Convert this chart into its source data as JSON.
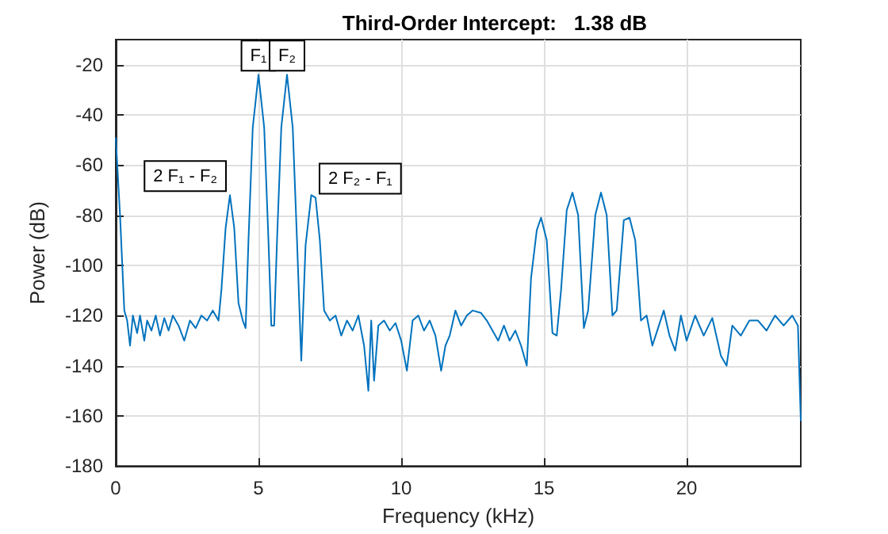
{
  "chart_data": {
    "type": "line",
    "title": "Third-Order Intercept:   1.38 dB",
    "xlabel": "Frequency (kHz)",
    "ylabel": "Power (dB)",
    "xlim": [
      0,
      24
    ],
    "xticks": [
      0,
      5,
      10,
      15,
      20
    ],
    "ylim": [
      -180,
      -10
    ],
    "yticks": [
      -180,
      -160,
      -140,
      -120,
      -100,
      -80,
      -60,
      -40,
      -20
    ],
    "grid": true,
    "marker": "none",
    "line_style": "solid",
    "series": [
      {
        "color": "#0072bd",
        "x": [
          0,
          0.15,
          0.3,
          0.4,
          0.5,
          0.6,
          0.75,
          0.85,
          1.0,
          1.1,
          1.25,
          1.4,
          1.55,
          1.7,
          1.85,
          2.0,
          2.2,
          2.4,
          2.6,
          2.8,
          3.0,
          3.2,
          3.4,
          3.6,
          3.7,
          3.85,
          4.0,
          4.15,
          4.3,
          4.45,
          4.55,
          4.65,
          4.8,
          5.0,
          5.2,
          5.35,
          5.45,
          5.55,
          5.65,
          5.8,
          6.0,
          6.2,
          6.35,
          6.5,
          6.65,
          6.85,
          7.0,
          7.15,
          7.3,
          7.5,
          7.7,
          7.9,
          8.1,
          8.3,
          8.5,
          8.7,
          8.85,
          8.95,
          9.05,
          9.2,
          9.4,
          9.6,
          9.8,
          10.0,
          10.2,
          10.4,
          10.6,
          10.8,
          11.0,
          11.2,
          11.4,
          11.55,
          11.7,
          11.9,
          12.1,
          12.3,
          12.5,
          12.8,
          13.0,
          13.2,
          13.4,
          13.6,
          13.8,
          14.0,
          14.2,
          14.4,
          14.55,
          14.75,
          14.9,
          15.1,
          15.3,
          15.45,
          15.6,
          15.8,
          16.0,
          16.2,
          16.4,
          16.55,
          16.8,
          17.0,
          17.2,
          17.4,
          17.55,
          17.8,
          18.0,
          18.2,
          18.4,
          18.6,
          18.8,
          19.0,
          19.2,
          19.4,
          19.6,
          19.8,
          20.0,
          20.3,
          20.6,
          20.9,
          21.2,
          21.4,
          21.6,
          21.9,
          22.2,
          22.5,
          22.8,
          23.1,
          23.4,
          23.7,
          23.9,
          24.0
        ],
        "values": [
          -49,
          -80,
          -118,
          -122,
          -132,
          -120,
          -127,
          -120,
          -130,
          -122,
          -126,
          -120,
          -128,
          -121,
          -126,
          -120,
          -124,
          -130,
          -122,
          -125,
          -120,
          -122,
          -118,
          -122,
          -110,
          -85,
          -72,
          -85,
          -115,
          -122,
          -125,
          -90,
          -45,
          -24,
          -45,
          -90,
          -124,
          -124,
          -90,
          -45,
          -24,
          -45,
          -90,
          -138,
          -92,
          -72,
          -73,
          -90,
          -118,
          -122,
          -120,
          -128,
          -122,
          -126,
          -120,
          -132,
          -150,
          -122,
          -146,
          -124,
          -122,
          -126,
          -123,
          -130,
          -142,
          -122,
          -120,
          -126,
          -122,
          -128,
          -142,
          -132,
          -128,
          -118,
          -124,
          -120,
          -118,
          -119,
          -122,
          -126,
          -130,
          -124,
          -130,
          -126,
          -132,
          -140,
          -105,
          -86,
          -81,
          -90,
          -127,
          -128,
          -110,
          -78,
          -71,
          -80,
          -125,
          -118,
          -80,
          -71,
          -80,
          -120,
          -118,
          -82,
          -81,
          -90,
          -122,
          -120,
          -132,
          -125,
          -118,
          -128,
          -134,
          -120,
          -130,
          -120,
          -128,
          -121,
          -136,
          -140,
          -124,
          -128,
          -122,
          -122,
          -126,
          -120,
          -124,
          -120,
          -124,
          -162
        ]
      }
    ],
    "annotations": [
      {
        "text": "F₁",
        "x": 5,
        "y": -24
      },
      {
        "text": "F₂",
        "x": 6,
        "y": -24
      },
      {
        "text": "2 F₁ - F₂",
        "x": 4,
        "y": -72
      },
      {
        "text": "2 F₂ - F₁",
        "x": 7,
        "y": -73
      }
    ]
  }
}
